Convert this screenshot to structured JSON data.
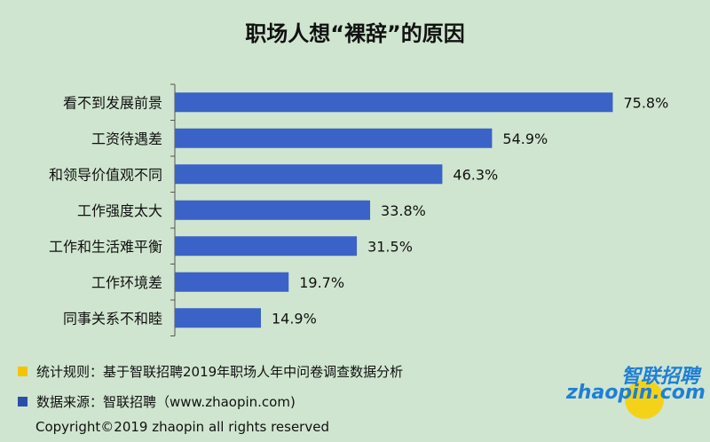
{
  "chart_data": {
    "type": "bar",
    "orientation": "horizontal",
    "title": "职场人想“裸辞”的原因",
    "categories": [
      "看不到发展前景",
      "工资待遇差",
      "和领导价值观不同",
      "工作强度太大",
      "工作和生活难平衡",
      "工作环境差",
      "同事关系不和睦"
    ],
    "values": [
      75.8,
      54.9,
      46.3,
      33.8,
      31.5,
      19.7,
      14.9
    ],
    "value_labels": [
      "75.8%",
      "54.9%",
      "46.3%",
      "33.8%",
      "31.5%",
      "19.7%",
      "14.9%"
    ],
    "unit": "%",
    "xlim": [
      0,
      100
    ],
    "bar_color": "#3a62c7",
    "grid": false,
    "legend": "none"
  },
  "notes": {
    "method_label": "统计规则：基于智联招聘2019年职场人年中问卷调查数据分析",
    "method_color": "#f5c400",
    "source_label": "数据来源：智联招聘（www.zhaopin.com)",
    "source_color": "#2b4fa8"
  },
  "copyright": "Copyright©2019 zhaopin all rights reserved",
  "logo": {
    "cn": "智联招聘",
    "en": "zhaopin.com"
  },
  "colors": {
    "background": "#cfe5cf"
  }
}
